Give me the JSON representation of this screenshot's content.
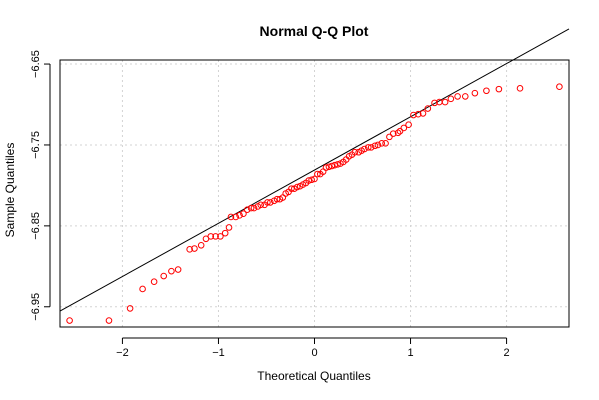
{
  "chart_data": {
    "type": "scatter",
    "title": "Normal Q-Q Plot",
    "xlabel": "Theoretical Quantiles",
    "ylabel": "Sample Quantiles",
    "xlim": [
      -2.65,
      2.65
    ],
    "ylim": [
      -6.975,
      -6.645
    ],
    "x_ticks": [
      -2,
      -1,
      0,
      1,
      2
    ],
    "x_tick_labels": [
      "−2",
      "−1",
      "0",
      "1",
      "2"
    ],
    "y_ticks": [
      -6.95,
      -6.85,
      -6.75,
      -6.65
    ],
    "y_tick_labels": [
      "−6.95",
      "−6.85",
      "−6.75",
      "−6.65"
    ],
    "grid": true,
    "point_color": "#ff0000",
    "line_color": "#000000",
    "reference_line": {
      "intercept": -6.781,
      "slope": 0.0658
    },
    "points": [
      [
        -2.55,
        -6.967
      ],
      [
        -2.14,
        -6.967
      ],
      [
        -1.92,
        -6.952
      ],
      [
        -1.79,
        -6.928
      ],
      [
        -1.67,
        -6.919
      ],
      [
        -1.57,
        -6.912
      ],
      [
        -1.49,
        -6.906
      ],
      [
        -1.42,
        -6.904
      ],
      [
        -1.3,
        -6.879
      ],
      [
        -1.25,
        -6.878
      ],
      [
        -1.18,
        -6.874
      ],
      [
        -1.13,
        -6.866
      ],
      [
        -1.08,
        -6.863
      ],
      [
        -1.03,
        -6.863
      ],
      [
        -0.98,
        -6.863
      ],
      [
        -0.93,
        -6.859
      ],
      [
        -0.89,
        -6.852
      ],
      [
        -0.87,
        -6.839
      ],
      [
        -0.82,
        -6.839
      ],
      [
        -0.78,
        -6.837
      ],
      [
        -0.74,
        -6.835
      ],
      [
        -0.7,
        -6.83
      ],
      [
        -0.66,
        -6.828
      ],
      [
        -0.63,
        -6.828
      ],
      [
        -0.59,
        -6.826
      ],
      [
        -0.56,
        -6.824
      ],
      [
        -0.52,
        -6.824
      ],
      [
        -0.49,
        -6.821
      ],
      [
        -0.46,
        -6.821
      ],
      [
        -0.42,
        -6.819
      ],
      [
        -0.39,
        -6.817
      ],
      [
        -0.36,
        -6.817
      ],
      [
        -0.33,
        -6.815
      ],
      [
        -0.3,
        -6.81
      ],
      [
        -0.27,
        -6.808
      ],
      [
        -0.24,
        -6.804
      ],
      [
        -0.21,
        -6.804
      ],
      [
        -0.18,
        -6.802
      ],
      [
        -0.15,
        -6.801
      ],
      [
        -0.12,
        -6.799
      ],
      [
        -0.09,
        -6.797
      ],
      [
        -0.06,
        -6.794
      ],
      [
        -0.03,
        -6.793
      ],
      [
        0.0,
        -6.792
      ],
      [
        0.03,
        -6.786
      ],
      [
        0.06,
        -6.786
      ],
      [
        0.09,
        -6.783
      ],
      [
        0.12,
        -6.778
      ],
      [
        0.15,
        -6.777
      ],
      [
        0.18,
        -6.776
      ],
      [
        0.21,
        -6.775
      ],
      [
        0.24,
        -6.774
      ],
      [
        0.27,
        -6.773
      ],
      [
        0.3,
        -6.771
      ],
      [
        0.33,
        -6.768
      ],
      [
        0.36,
        -6.764
      ],
      [
        0.39,
        -6.762
      ],
      [
        0.42,
        -6.759
      ],
      [
        0.46,
        -6.759
      ],
      [
        0.49,
        -6.757
      ],
      [
        0.52,
        -6.755
      ],
      [
        0.56,
        -6.753
      ],
      [
        0.59,
        -6.753
      ],
      [
        0.63,
        -6.751
      ],
      [
        0.66,
        -6.75
      ],
      [
        0.7,
        -6.748
      ],
      [
        0.74,
        -6.748
      ],
      [
        0.78,
        -6.74
      ],
      [
        0.82,
        -6.736
      ],
      [
        0.87,
        -6.735
      ],
      [
        0.89,
        -6.733
      ],
      [
        0.93,
        -6.729
      ],
      [
        0.98,
        -6.725
      ],
      [
        1.03,
        -6.713
      ],
      [
        1.08,
        -6.712
      ],
      [
        1.13,
        -6.711
      ],
      [
        1.18,
        -6.705
      ],
      [
        1.25,
        -6.698
      ],
      [
        1.3,
        -6.697
      ],
      [
        1.36,
        -6.697
      ],
      [
        1.42,
        -6.693
      ],
      [
        1.49,
        -6.69
      ],
      [
        1.57,
        -6.69
      ],
      [
        1.67,
        -6.686
      ],
      [
        1.79,
        -6.683
      ],
      [
        1.92,
        -6.681
      ],
      [
        2.14,
        -6.68
      ],
      [
        2.55,
        -6.678
      ]
    ]
  }
}
